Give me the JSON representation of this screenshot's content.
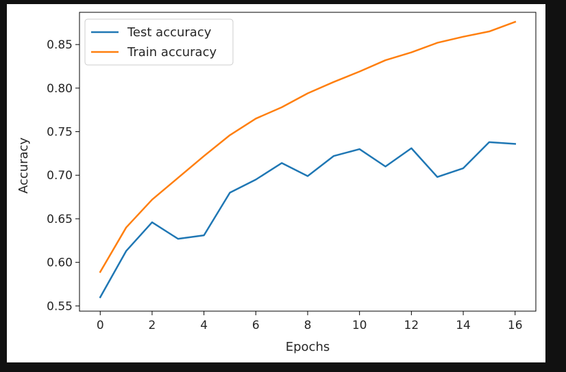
{
  "chart_data": {
    "type": "line",
    "xlabel": "Epochs",
    "ylabel": "Accuracy",
    "xlim": [
      -0.8,
      16.8
    ],
    "ylim": [
      0.544,
      0.887
    ],
    "xticks": [
      0,
      2,
      4,
      6,
      8,
      10,
      12,
      14,
      16
    ],
    "yticks": [
      0.55,
      0.6,
      0.65,
      0.7,
      0.75,
      0.8,
      0.85
    ],
    "xtick_labels": [
      "0",
      "2",
      "4",
      "6",
      "8",
      "10",
      "12",
      "14",
      "16"
    ],
    "ytick_labels": [
      "0.55",
      "0.60",
      "0.65",
      "0.70",
      "0.75",
      "0.80",
      "0.85"
    ],
    "grid": false,
    "legend_position": "top-left",
    "x": [
      0,
      1,
      2,
      3,
      4,
      5,
      6,
      7,
      8,
      9,
      10,
      11,
      12,
      13,
      14,
      15,
      16
    ],
    "series": [
      {
        "name": "Test accuracy",
        "color": "#1f77b4",
        "values": [
          0.56,
          0.613,
          0.646,
          0.627,
          0.631,
          0.68,
          0.695,
          0.714,
          0.699,
          0.722,
          0.73,
          0.71,
          0.731,
          0.698,
          0.708,
          0.738,
          0.736
        ]
      },
      {
        "name": "Train accuracy",
        "color": "#ff7f0e",
        "values": [
          0.589,
          0.64,
          0.672,
          0.697,
          0.722,
          0.746,
          0.765,
          0.778,
          0.794,
          0.807,
          0.819,
          0.832,
          0.841,
          0.852,
          0.859,
          0.865,
          0.876
        ]
      }
    ]
  }
}
